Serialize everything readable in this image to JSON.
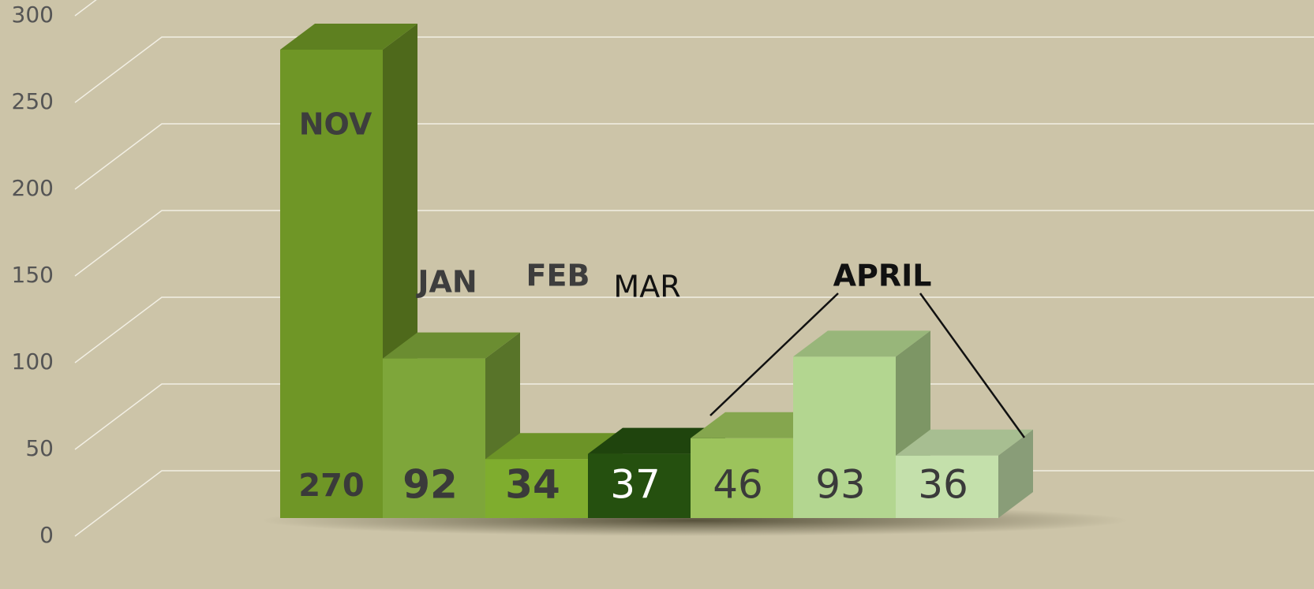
{
  "chart_data": {
    "type": "bar3d",
    "categories": [
      "NOV",
      "JAN",
      "FEB",
      "MAR",
      null,
      null,
      null
    ],
    "values": [
      270,
      92,
      34,
      37,
      46,
      93,
      36
    ],
    "colors": [
      "#6f9626",
      "#7ea63a",
      "#7fad2e",
      "#25500f",
      "#9cc35c",
      "#b3d690",
      "#c4e0ab"
    ],
    "value_label_colors": [
      "#3a3a3a",
      "#3a3a3a",
      "#3a3a3a",
      "#ffffff",
      "#3a3a3a",
      "#3a3a3a",
      "#3a3a3a"
    ],
    "annotation": "APRIL",
    "ylim": [
      0,
      300
    ],
    "yticks": [
      0,
      50,
      100,
      150,
      200,
      250,
      300
    ],
    "grid": true
  }
}
